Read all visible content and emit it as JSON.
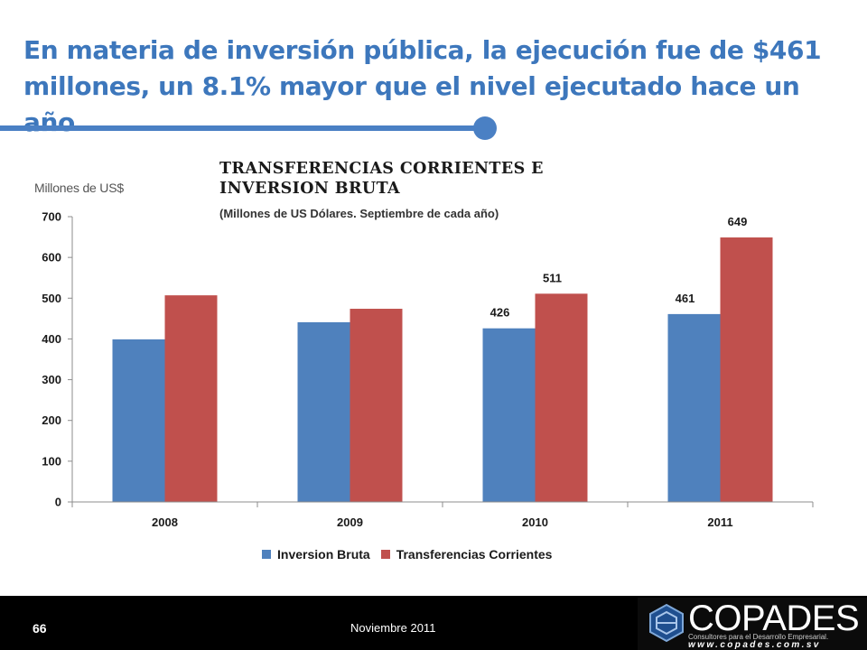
{
  "slide": {
    "headline": "En materia de inversión pública, la ejecución fue de $461 millones, un 8.1% mayor que el nivel ejecutado hace un año…"
  },
  "chart_data": {
    "type": "bar",
    "title": "TRANSFERENCIAS CORRIENTES E INVERSION BRUTA",
    "subtitle": "(Millones de US Dólares. Septiembre de cada año)",
    "ylabel": "Millones de US$",
    "xlabel": "",
    "ylim": [
      0,
      700
    ],
    "yticks": [
      0,
      100,
      200,
      300,
      400,
      500,
      600,
      700
    ],
    "categories": [
      "2008",
      "2009",
      "2010",
      "2011"
    ],
    "series": [
      {
        "name": "Inversion Bruta",
        "color": "#4F81BD",
        "values": [
          399,
          441,
          426,
          461
        ],
        "labels": [
          "",
          "",
          "426",
          "461"
        ]
      },
      {
        "name": "Transferencias Corrientes",
        "color": "#C0504D",
        "values": [
          507,
          474,
          511,
          649
        ],
        "labels": [
          "",
          "",
          "511",
          "649"
        ]
      }
    ],
    "legend_position": "bottom",
    "grid": false
  },
  "footer": {
    "page_number": "66",
    "date": "Noviembre 2011",
    "logo_name": "COPADES",
    "logo_tagline": "Consultores para el Desarrollo Empresarial.",
    "logo_url": "www.copades.com.sv"
  }
}
